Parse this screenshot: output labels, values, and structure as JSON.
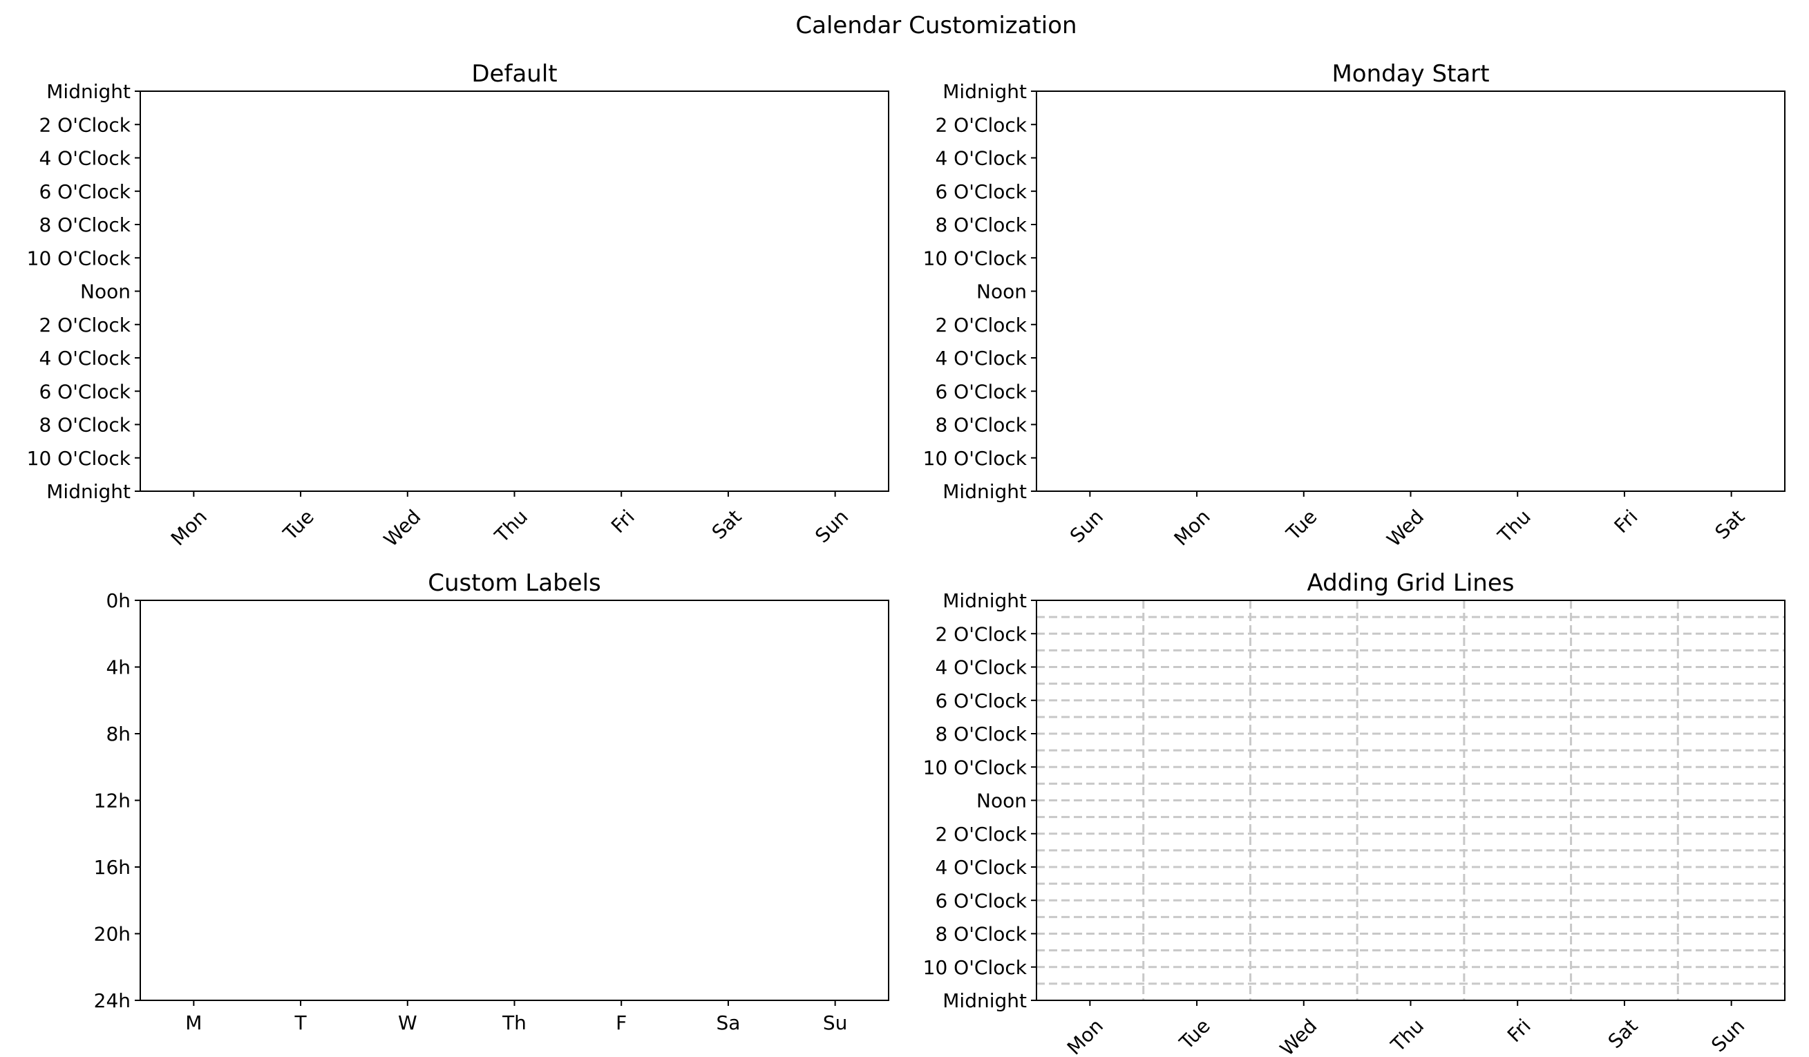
{
  "figure": {
    "title": "Calendar Customization"
  },
  "chart_data": [
    {
      "type": "table",
      "title": "Default",
      "x_tick_labels": [
        "Mon",
        "Tue",
        "Wed",
        "Thu",
        "Fri",
        "Sat",
        "Sun"
      ],
      "y_tick_labels": [
        "Midnight",
        "2 O'Clock",
        "4 O'Clock",
        "6 O'Clock",
        "8 O'Clock",
        "10 O'Clock",
        "Noon",
        "2 O'Clock",
        "4 O'Clock",
        "6 O'Clock",
        "8 O'Clock",
        "10 O'Clock",
        "Midnight"
      ],
      "x_tick_rotation": 45,
      "ylim": [
        0,
        24
      ],
      "grid": false
    },
    {
      "type": "table",
      "title": "Monday Start",
      "x_tick_labels": [
        "Sun",
        "Mon",
        "Tue",
        "Wed",
        "Thu",
        "Fri",
        "Sat"
      ],
      "y_tick_labels": [
        "Midnight",
        "2 O'Clock",
        "4 O'Clock",
        "6 O'Clock",
        "8 O'Clock",
        "10 O'Clock",
        "Noon",
        "2 O'Clock",
        "4 O'Clock",
        "6 O'Clock",
        "8 O'Clock",
        "10 O'Clock",
        "Midnight"
      ],
      "x_tick_rotation": 45,
      "ylim": [
        0,
        24
      ],
      "grid": false
    },
    {
      "type": "table",
      "title": "Custom Labels",
      "x_tick_labels": [
        "M",
        "T",
        "W",
        "Th",
        "F",
        "Sa",
        "Su"
      ],
      "y_tick_labels": [
        "0h",
        "4h",
        "8h",
        "12h",
        "16h",
        "20h",
        "24h"
      ],
      "x_tick_rotation": 0,
      "ylim": [
        0,
        24
      ],
      "grid": false
    },
    {
      "type": "table",
      "title": "Adding Grid Lines",
      "x_tick_labels": [
        "Mon",
        "Tue",
        "Wed",
        "Thu",
        "Fri",
        "Sat",
        "Sun"
      ],
      "y_tick_labels": [
        "Midnight",
        "2 O'Clock",
        "4 O'Clock",
        "6 O'Clock",
        "8 O'Clock",
        "10 O'Clock",
        "Noon",
        "2 O'Clock",
        "4 O'Clock",
        "6 O'Clock",
        "8 O'Clock",
        "10 O'Clock",
        "Midnight"
      ],
      "x_tick_rotation": 45,
      "ylim": [
        0,
        24
      ],
      "grid": true,
      "grid_style": "dashed",
      "grid_color": "#c8c8c8"
    }
  ]
}
